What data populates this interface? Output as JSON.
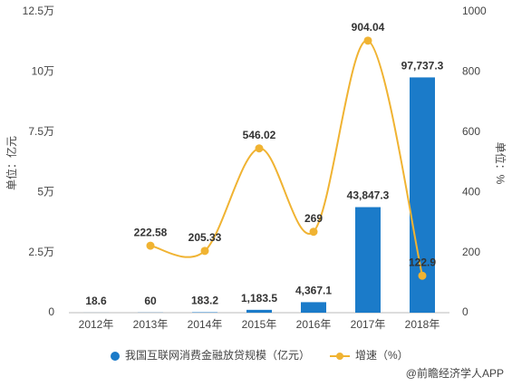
{
  "chart_data": {
    "type": "combo",
    "categories": [
      "2012年",
      "2013年",
      "2014年",
      "2015年",
      "2016年",
      "2017年",
      "2018年"
    ],
    "ylabel": "单位：亿元",
    "y2label": "单位：%",
    "ylim": [
      0,
      125000
    ],
    "yticks": [
      0,
      {
        "value": 25000,
        "label": "2.5万"
      },
      {
        "value": 50000,
        "label": "5万"
      },
      {
        "value": 75000,
        "label": "7.5万"
      },
      {
        "value": 100000,
        "label": "10万"
      },
      {
        "value": 125000,
        "label": "12.5万"
      }
    ],
    "y2lim": [
      0,
      1000
    ],
    "y2ticks": [
      0,
      200,
      400,
      600,
      800,
      1000
    ],
    "grid": false,
    "series": [
      {
        "name": "我国互联网消费金融放贷规模（亿元）",
        "type": "bar",
        "color": "#1b7bc9",
        "values": [
          18.6,
          60,
          183.2,
          1183.5,
          4367.1,
          43847.3,
          97737.3
        ],
        "value_labels": [
          "18.6",
          "60",
          "183.2",
          "1,183.5",
          "4,367.1",
          "43,847.3",
          "97,737.3"
        ]
      },
      {
        "name": "增速（%）",
        "type": "line",
        "axis": "y2",
        "color": "#f0b332",
        "values": [
          null,
          222.58,
          205.33,
          546.02,
          269,
          904.04,
          122.9
        ]
      }
    ],
    "footer": "@前瞻经济学人APP"
  }
}
